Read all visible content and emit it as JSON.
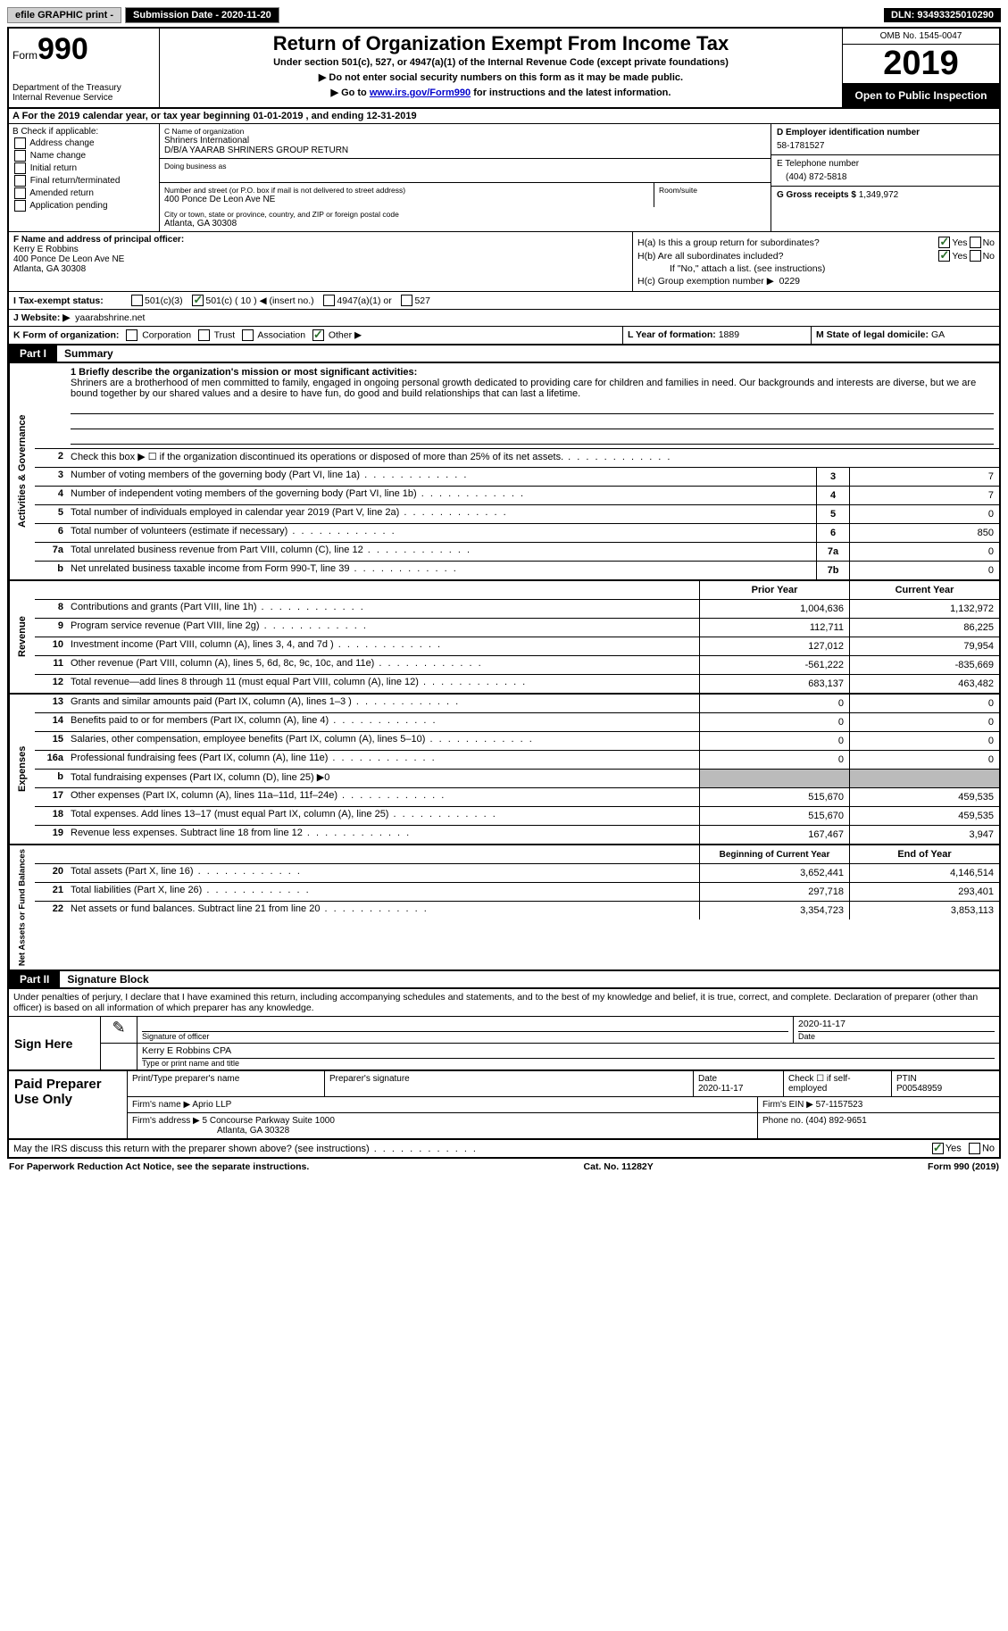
{
  "topbar": {
    "efile": "efile GRAPHIC print -",
    "submission": "Submission Date - 2020-11-20",
    "dln": "DLN: 93493325010290"
  },
  "header": {
    "form_word": "Form",
    "form_num": "990",
    "dept": "Department of the Treasury",
    "irs": "Internal Revenue Service",
    "title": "Return of Organization Exempt From Income Tax",
    "sub1": "Under section 501(c), 527, or 4947(a)(1) of the Internal Revenue Code (except private foundations)",
    "sub2a": "▶ Do not enter social security numbers on this form as it may be made public.",
    "sub2b_pre": "▶ Go to ",
    "sub2b_link": "www.irs.gov/Form990",
    "sub2b_post": " for instructions and the latest information.",
    "omb": "OMB No. 1545-0047",
    "year": "2019",
    "open": "Open to Public Inspection"
  },
  "rowA": "A For the 2019 calendar year, or tax year beginning 01-01-2019    , and ending 12-31-2019",
  "colB": {
    "title": "B Check if applicable:",
    "items": [
      "Address change",
      "Name change",
      "Initial return",
      "Final return/terminated",
      "Amended return",
      "Application pending"
    ]
  },
  "colC": {
    "c_lbl": "C Name of organization",
    "name": "Shriners International",
    "dba_line": "D/B/A YAARAB SHRINERS GROUP RETURN",
    "dba_lbl": "Doing business as",
    "addr_lbl": "Number and street (or P.O. box if mail is not delivered to street address)",
    "addr": "400 Ponce De Leon Ave NE",
    "room_lbl": "Room/suite",
    "city_lbl": "City or town, state or province, country, and ZIP or foreign postal code",
    "city": "Atlanta, GA   30308"
  },
  "colD": {
    "d_lbl": "D Employer identification number",
    "ein": "58-1781527",
    "e_lbl": "E Telephone number",
    "phone": "(404) 872-5818",
    "g_lbl": "G Gross receipts $",
    "gross": "1,349,972"
  },
  "colF": {
    "f_lbl": "F Name and address of principal officer:",
    "name": "Kerry E Robbins",
    "addr1": "400 Ponce De Leon Ave NE",
    "addr2": "Atlanta, GA   30308"
  },
  "colH": {
    "ha_lbl": "H(a)  Is this a group return for subordinates?",
    "hb_lbl": "H(b)  Are all subordinates included?",
    "hb_note": "If \"No,\" attach a list. (see instructions)",
    "hc_lbl": "H(c)  Group exemption number ▶",
    "hc_val": "0229",
    "yes": "Yes",
    "no": "No"
  },
  "rowI": {
    "lbl": "I   Tax-exempt status:",
    "o1": "501(c)(3)",
    "o2": "501(c) ( 10 ) ◀ (insert no.)",
    "o3": "4947(a)(1) or",
    "o4": "527"
  },
  "rowJ": {
    "lbl": "J   Website: ▶",
    "val": "yaarabshrine.net"
  },
  "rowK": {
    "lbl": "K Form of organization:",
    "o1": "Corporation",
    "o2": "Trust",
    "o3": "Association",
    "o4": "Other ▶"
  },
  "rowL": {
    "lbl": "L Year of formation:",
    "val": "1889"
  },
  "rowM": {
    "lbl": "M State of legal domicile:",
    "val": "GA"
  },
  "part1": {
    "num": "Part I",
    "title": "Summary"
  },
  "vlabels": {
    "gov": "Activities & Governance",
    "rev": "Revenue",
    "exp": "Expenses",
    "net": "Net Assets or Fund Balances"
  },
  "mission": {
    "lbl": "1   Briefly describe the organization's mission or most significant activities:",
    "text": "Shriners are a brotherhood of men committed to family, engaged in ongoing personal growth dedicated to providing care for children and families in need. Our backgrounds and interests are diverse, but we are bound together by our shared values and a desire to have fun, do good and build relationships that can last a lifetime."
  },
  "gov_rows": [
    {
      "n": "2",
      "d": "Check this box ▶ ☐ if the organization discontinued its operations or disposed of more than 25% of its net assets."
    },
    {
      "n": "3",
      "d": "Number of voting members of the governing body (Part VI, line 1a)",
      "box": "3",
      "v": "7"
    },
    {
      "n": "4",
      "d": "Number of independent voting members of the governing body (Part VI, line 1b)",
      "box": "4",
      "v": "7"
    },
    {
      "n": "5",
      "d": "Total number of individuals employed in calendar year 2019 (Part V, line 2a)",
      "box": "5",
      "v": "0"
    },
    {
      "n": "6",
      "d": "Total number of volunteers (estimate if necessary)",
      "box": "6",
      "v": "850"
    },
    {
      "n": "7a",
      "d": "Total unrelated business revenue from Part VIII, column (C), line 12",
      "box": "7a",
      "v": "0"
    },
    {
      "n": "b",
      "d": "Net unrelated business taxable income from Form 990-T, line 39",
      "box": "7b",
      "v": "0"
    }
  ],
  "rev_head": {
    "py": "Prior Year",
    "cy": "Current Year"
  },
  "rev_rows": [
    {
      "n": "8",
      "d": "Contributions and grants (Part VIII, line 1h)",
      "py": "1,004,636",
      "cy": "1,132,972"
    },
    {
      "n": "9",
      "d": "Program service revenue (Part VIII, line 2g)",
      "py": "112,711",
      "cy": "86,225"
    },
    {
      "n": "10",
      "d": "Investment income (Part VIII, column (A), lines 3, 4, and 7d )",
      "py": "127,012",
      "cy": "79,954"
    },
    {
      "n": "11",
      "d": "Other revenue (Part VIII, column (A), lines 5, 6d, 8c, 9c, 10c, and 11e)",
      "py": "-561,222",
      "cy": "-835,669"
    },
    {
      "n": "12",
      "d": "Total revenue—add lines 8 through 11 (must equal Part VIII, column (A), line 12)",
      "py": "683,137",
      "cy": "463,482"
    }
  ],
  "exp_rows": [
    {
      "n": "13",
      "d": "Grants and similar amounts paid (Part IX, column (A), lines 1–3 )",
      "py": "0",
      "cy": "0"
    },
    {
      "n": "14",
      "d": "Benefits paid to or for members (Part IX, column (A), line 4)",
      "py": "0",
      "cy": "0"
    },
    {
      "n": "15",
      "d": "Salaries, other compensation, employee benefits (Part IX, column (A), lines 5–10)",
      "py": "0",
      "cy": "0"
    },
    {
      "n": "16a",
      "d": "Professional fundraising fees (Part IX, column (A), line 11e)",
      "py": "0",
      "cy": "0"
    },
    {
      "n": "b",
      "d": "Total fundraising expenses (Part IX, column (D), line 25) ▶0",
      "gray": true
    },
    {
      "n": "17",
      "d": "Other expenses (Part IX, column (A), lines 11a–11d, 11f–24e)",
      "py": "515,670",
      "cy": "459,535"
    },
    {
      "n": "18",
      "d": "Total expenses. Add lines 13–17 (must equal Part IX, column (A), line 25)",
      "py": "515,670",
      "cy": "459,535"
    },
    {
      "n": "19",
      "d": "Revenue less expenses. Subtract line 18 from line 12",
      "py": "167,467",
      "cy": "3,947"
    }
  ],
  "net_head": {
    "py": "Beginning of Current Year",
    "cy": "End of Year"
  },
  "net_rows": [
    {
      "n": "20",
      "d": "Total assets (Part X, line 16)",
      "py": "3,652,441",
      "cy": "4,146,514"
    },
    {
      "n": "21",
      "d": "Total liabilities (Part X, line 26)",
      "py": "297,718",
      "cy": "293,401"
    },
    {
      "n": "22",
      "d": "Net assets or fund balances. Subtract line 21 from line 20",
      "py": "3,354,723",
      "cy": "3,853,113"
    }
  ],
  "part2": {
    "num": "Part II",
    "title": "Signature Block"
  },
  "sig": {
    "intro": "Under penalties of perjury, I declare that I have examined this return, including accompanying schedules and statements, and to the best of my knowledge and belief, it is true, correct, and complete. Declaration of preparer (other than officer) is based on all information of which preparer has any knowledge.",
    "sign_here": "Sign Here",
    "sig_lbl": "Signature of officer",
    "date_lbl": "Date",
    "date": "2020-11-17",
    "name": "Kerry E Robbins  CPA",
    "name_lbl": "Type or print name and title"
  },
  "prep": {
    "title": "Paid Preparer Use Only",
    "h1": "Print/Type preparer's name",
    "h2": "Preparer's signature",
    "h3_lbl": "Date",
    "h3": "2020-11-17",
    "h4": "Check ☐ if self-employed",
    "h5_lbl": "PTIN",
    "h5": "P00548959",
    "firm_lbl": "Firm's name    ▶",
    "firm": "Aprio LLP",
    "ein_lbl": "Firm's EIN ▶",
    "ein": "57-1157523",
    "addr_lbl": "Firm's address ▶",
    "addr1": "5 Concourse Parkway Suite 1000",
    "addr2": "Atlanta, GA  30328",
    "phone_lbl": "Phone no.",
    "phone": "(404) 892-9651"
  },
  "bottom": {
    "q": "May the IRS discuss this return with the preparer shown above? (see instructions)",
    "yes": "Yes",
    "no": "No"
  },
  "footer": {
    "left": "For Paperwork Reduction Act Notice, see the separate instructions.",
    "mid": "Cat. No. 11282Y",
    "right": "Form 990 (2019)"
  }
}
